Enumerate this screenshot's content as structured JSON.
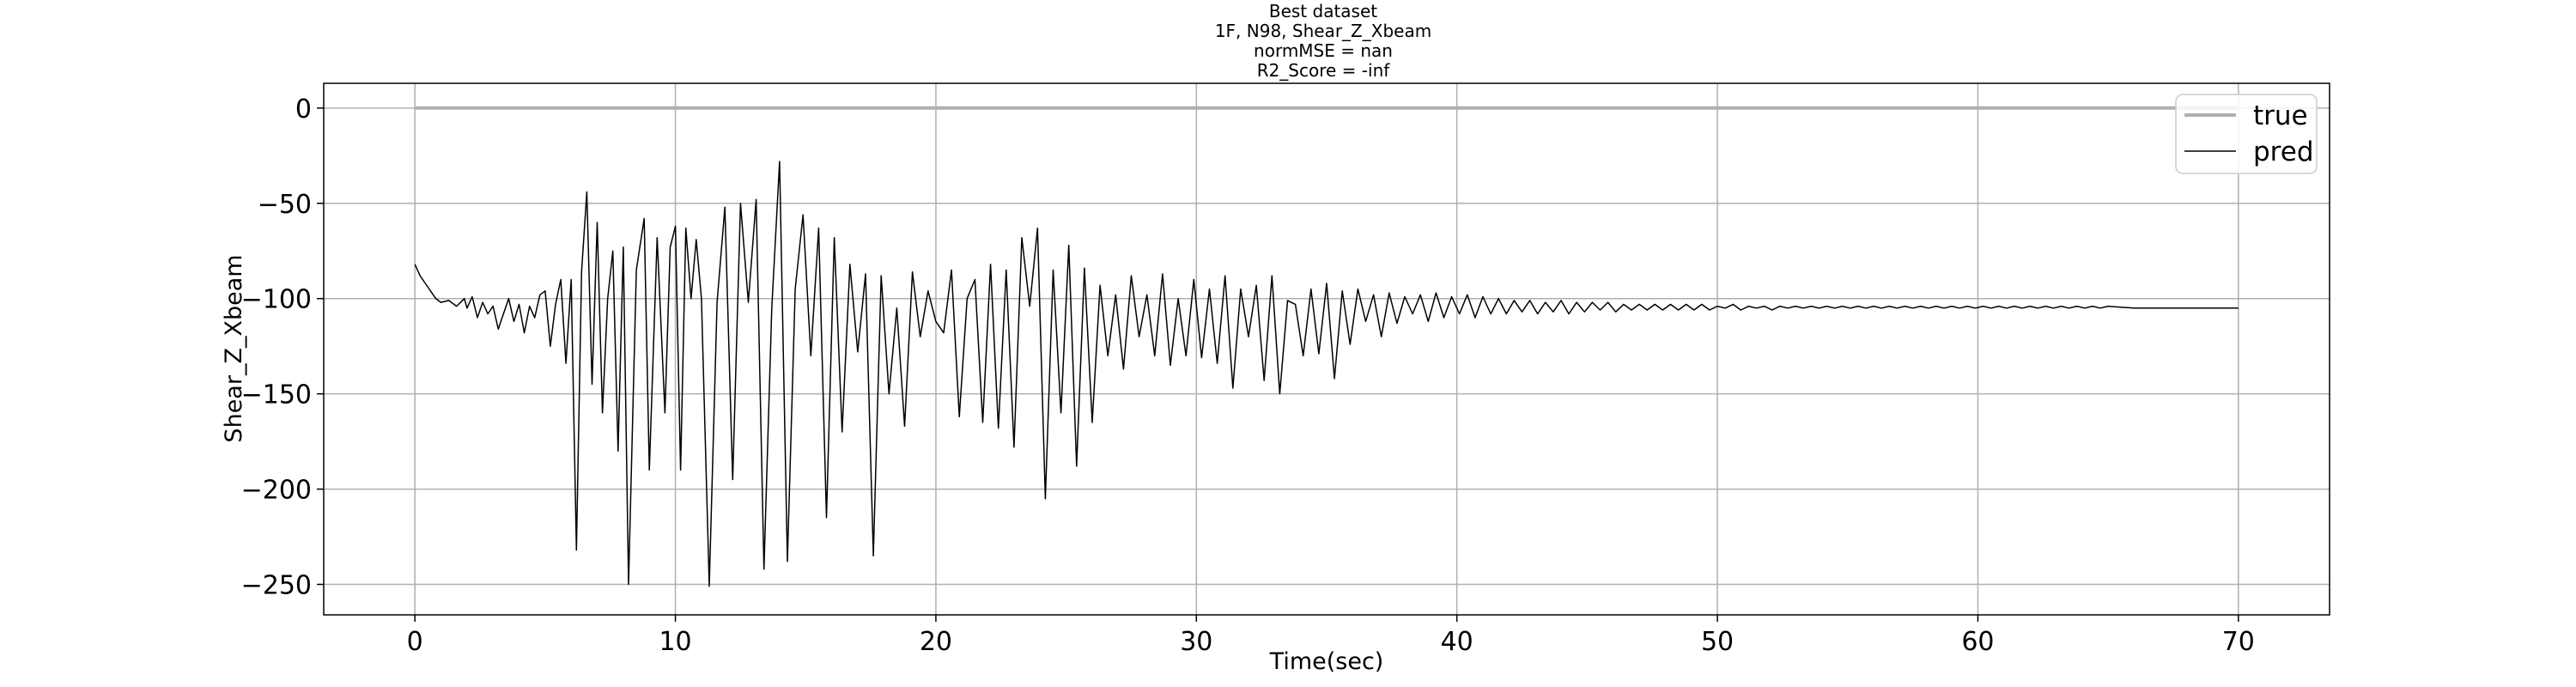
{
  "chart_data": {
    "type": "line",
    "title_lines": [
      "Best dataset",
      "1F, N98, Shear_Z_Xbeam",
      "normMSE = nan",
      "R2_Score = -inf"
    ],
    "xlabel": "Time(sec)",
    "ylabel": "Shear_Z_Xbeam",
    "xlim": [
      -3.5,
      73.5
    ],
    "ylim": [
      -266,
      13
    ],
    "xticks": [
      0,
      10,
      20,
      30,
      40,
      50,
      60,
      70
    ],
    "xtick_labels": [
      "0",
      "10",
      "20",
      "30",
      "40",
      "50",
      "60",
      "70"
    ],
    "yticks": [
      0,
      -50,
      -100,
      -150,
      -200,
      -250
    ],
    "ytick_labels": [
      "0",
      "−50",
      "−100",
      "−150",
      "−200",
      "−250"
    ],
    "grid": true,
    "legend": {
      "position": "top-right",
      "entries": [
        "true",
        "pred"
      ]
    },
    "series": [
      {
        "name": "true",
        "color": "#b0b0b0",
        "x": [
          0,
          70
        ],
        "y": [
          0,
          0
        ]
      },
      {
        "name": "pred",
        "color": "#000000",
        "x": [
          0.0,
          0.2,
          0.4,
          0.6,
          0.8,
          1.0,
          1.3,
          1.6,
          1.9,
          2.0,
          2.2,
          2.4,
          2.6,
          2.8,
          3.0,
          3.2,
          3.4,
          3.6,
          3.8,
          4.0,
          4.2,
          4.4,
          4.6,
          4.8,
          5.0,
          5.2,
          5.4,
          5.6,
          5.8,
          6.0,
          6.2,
          6.4,
          6.6,
          6.8,
          7.0,
          7.2,
          7.4,
          7.6,
          7.8,
          8.0,
          8.2,
          8.5,
          8.8,
          9.0,
          9.3,
          9.6,
          9.8,
          10.0,
          10.2,
          10.4,
          10.6,
          10.8,
          11.0,
          11.3,
          11.6,
          11.9,
          12.2,
          12.5,
          12.8,
          13.1,
          13.4,
          13.7,
          14.0,
          14.3,
          14.6,
          14.9,
          15.2,
          15.5,
          15.8,
          16.1,
          16.4,
          16.7,
          17.0,
          17.3,
          17.6,
          17.9,
          18.2,
          18.5,
          18.8,
          19.1,
          19.4,
          19.7,
          20.0,
          20.3,
          20.6,
          20.9,
          21.2,
          21.5,
          21.8,
          22.1,
          22.4,
          22.7,
          23.0,
          23.3,
          23.6,
          23.9,
          24.2,
          24.5,
          24.8,
          25.1,
          25.4,
          25.7,
          26.0,
          26.3,
          26.6,
          26.9,
          27.2,
          27.5,
          27.8,
          28.1,
          28.4,
          28.7,
          29.0,
          29.3,
          29.6,
          29.9,
          30.2,
          30.5,
          30.8,
          31.1,
          31.4,
          31.7,
          32.0,
          32.3,
          32.6,
          32.9,
          33.2,
          33.5,
          33.8,
          34.1,
          34.4,
          34.7,
          35.0,
          35.3,
          35.6,
          35.9,
          36.2,
          36.5,
          36.8,
          37.1,
          37.4,
          37.7,
          38.0,
          38.3,
          38.6,
          38.9,
          39.2,
          39.5,
          39.8,
          40.1,
          40.4,
          40.7,
          41.0,
          41.3,
          41.6,
          41.9,
          42.2,
          42.5,
          42.8,
          43.1,
          43.4,
          43.7,
          44.0,
          44.3,
          44.6,
          44.9,
          45.2,
          45.5,
          45.8,
          46.1,
          46.4,
          46.7,
          47.0,
          47.3,
          47.6,
          47.9,
          48.2,
          48.5,
          48.8,
          49.1,
          49.4,
          49.7,
          50.0,
          50.3,
          50.6,
          50.9,
          51.2,
          51.5,
          51.8,
          52.1,
          52.4,
          52.7,
          53.0,
          53.3,
          53.6,
          53.9,
          54.2,
          54.5,
          54.8,
          55.1,
          55.4,
          55.7,
          56.0,
          56.3,
          56.6,
          56.9,
          57.2,
          57.5,
          57.8,
          58.1,
          58.4,
          58.7,
          59.0,
          59.3,
          59.6,
          59.9,
          60.2,
          60.5,
          60.8,
          61.1,
          61.4,
          61.7,
          62.0,
          62.3,
          62.6,
          62.9,
          63.2,
          63.5,
          63.8,
          64.1,
          64.4,
          64.7,
          65.0,
          65.5,
          66.0,
          67.0,
          68.0,
          69.0,
          70.0
        ],
        "y": [
          -82,
          -88,
          -92,
          -96,
          -100,
          -102,
          -101,
          -104,
          -100,
          -105,
          -99,
          -110,
          -102,
          -108,
          -104,
          -116,
          -108,
          -100,
          -112,
          -103,
          -118,
          -104,
          -110,
          -98,
          -96,
          -125,
          -103,
          -90,
          -134,
          -90,
          -232,
          -86,
          -44,
          -145,
          -60,
          -160,
          -100,
          -75,
          -180,
          -73,
          -250,
          -85,
          -58,
          -190,
          -68,
          -160,
          -73,
          -62,
          -190,
          -63,
          -100,
          -69,
          -100,
          -251,
          -102,
          -52,
          -195,
          -50,
          -102,
          -48,
          -242,
          -105,
          -28,
          -238,
          -95,
          -56,
          -130,
          -63,
          -215,
          -68,
          -170,
          -82,
          -128,
          -87,
          -235,
          -88,
          -150,
          -105,
          -167,
          -86,
          -120,
          -96,
          -112,
          -118,
          -85,
          -162,
          -100,
          -90,
          -165,
          -82,
          -168,
          -85,
          -178,
          -68,
          -104,
          -63,
          -205,
          -85,
          -160,
          -72,
          -188,
          -84,
          -165,
          -93,
          -130,
          -98,
          -137,
          -88,
          -120,
          -98,
          -130,
          -87,
          -135,
          -100,
          -130,
          -90,
          -131,
          -95,
          -134,
          -88,
          -147,
          -95,
          -120,
          -93,
          -143,
          -88,
          -150,
          -101,
          -103,
          -130,
          -95,
          -129,
          -92,
          -142,
          -96,
          -124,
          -95,
          -112,
          -98,
          -120,
          -97,
          -113,
          -99,
          -108,
          -98,
          -112,
          -97,
          -110,
          -99,
          -108,
          -98,
          -110,
          -99,
          -108,
          -100,
          -108,
          -101,
          -107,
          -101,
          -108,
          -102,
          -107,
          -101,
          -108,
          -102,
          -107,
          -102,
          -106,
          -102,
          -107,
          -103,
          -106,
          -103,
          -106,
          -103,
          -106,
          -103,
          -106,
          -103,
          -106,
          -103,
          -106,
          -104,
          -105,
          -103,
          -106,
          -104,
          -105,
          -104,
          -106,
          -104,
          -105,
          -104,
          -105,
          -104,
          -105,
          -104,
          -105,
          -104,
          -105,
          -104,
          -105,
          -104,
          -105,
          -104,
          -105,
          -104,
          -105,
          -104,
          -105,
          -104,
          -105,
          -104,
          -105,
          -104,
          -105,
          -104,
          -105,
          -104,
          -105,
          -104,
          -105,
          -104,
          -105,
          -104,
          -105,
          -104,
          -105,
          -104,
          -105,
          -104,
          -105,
          -104,
          -104.5,
          -105,
          -105,
          -105,
          -105,
          -105
        ]
      }
    ]
  }
}
